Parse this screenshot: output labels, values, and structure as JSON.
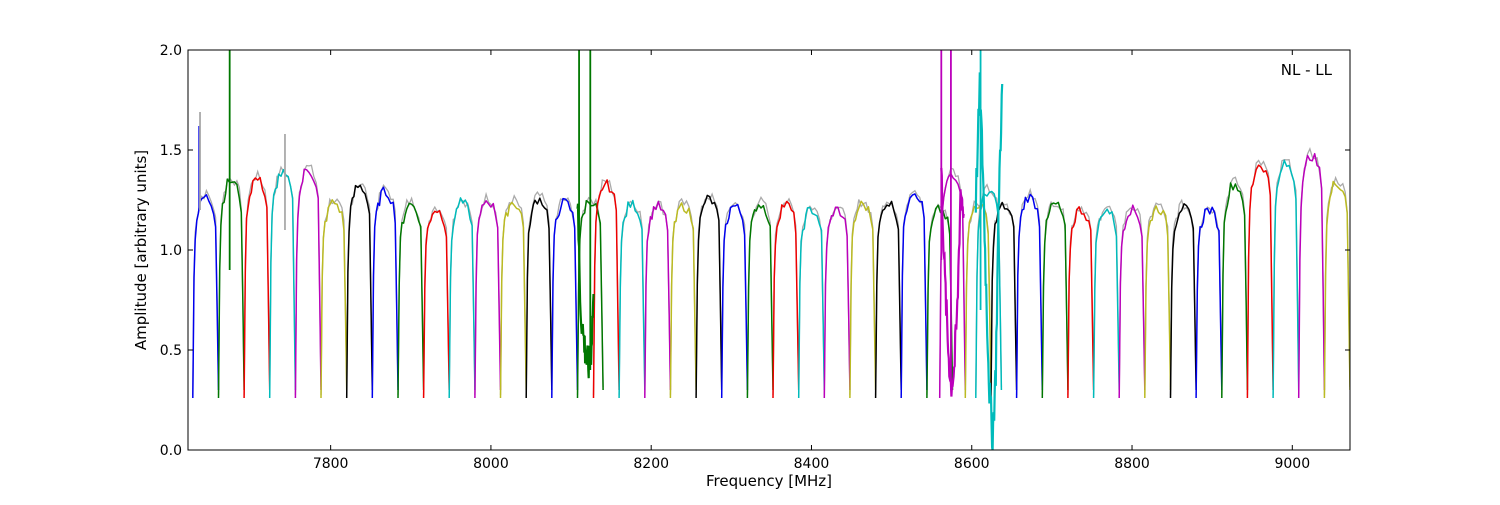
{
  "chart_data": {
    "type": "line",
    "annotation": "NL - LL",
    "xlabel": "Frequency [MHz]",
    "ylabel": "Amplitude [arbitrary units]",
    "xlim": [
      7622,
      9072
    ],
    "ylim": [
      0.0,
      2.0
    ],
    "x_ticks": [
      7800,
      8000,
      8200,
      8400,
      8600,
      8800,
      9000
    ],
    "x_tick_labels": [
      "7800",
      "8000",
      "8200",
      "8400",
      "8600",
      "8800",
      "9000"
    ],
    "y_ticks": [
      0.0,
      0.5,
      1.0,
      1.5,
      2.0
    ],
    "y_tick_labels": [
      "0.0",
      "0.5",
      "1.0",
      "1.5",
      "2.0"
    ],
    "grid": false,
    "legend": "none",
    "background_color": "#aaaaaa",
    "series_colors": [
      "#0000ee",
      "#007700",
      "#ee0000",
      "#00bbbb",
      "#bb00bb",
      "#bbbb22",
      "#000000"
    ],
    "channel_width_mhz": 32,
    "channel_shape": {
      "dx": [
        0,
        1.5,
        3,
        5,
        7,
        9,
        11,
        14,
        17,
        20,
        23,
        26,
        28.5,
        30.5,
        32
      ],
      "dy": [
        0.26,
        0.82,
        1.02,
        1.1,
        1.13,
        1.16,
        1.19,
        1.2,
        1.2,
        1.19,
        1.17,
        1.14,
        1.08,
        0.65,
        0.3
      ]
    },
    "channels": [
      {
        "start": 7628,
        "color": "#0000ee",
        "scale": 1.07
      },
      {
        "start": 7660,
        "color": "#007700",
        "scale": 1.16
      },
      {
        "start": 7692,
        "color": "#ee0000",
        "scale": 1.17
      },
      {
        "start": 7724,
        "color": "#00bbbb",
        "scale": 1.2
      },
      {
        "start": 7756,
        "color": "#bb00bb",
        "scale": 1.22
      },
      {
        "start": 7788,
        "color": "#bbbb22",
        "scale": 1.04
      },
      {
        "start": 7820,
        "color": "#000000",
        "scale": 1.13
      },
      {
        "start": 7852,
        "color": "#0000ee",
        "scale": 1.1
      },
      {
        "start": 7884,
        "color": "#007700",
        "scale": 1.03
      },
      {
        "start": 7916,
        "color": "#ee0000",
        "scale": 1.0
      },
      {
        "start": 7948,
        "color": "#00bbbb",
        "scale": 1.04
      },
      {
        "start": 7980,
        "color": "#bb00bb",
        "scale": 1.05
      },
      {
        "start": 8012,
        "color": "#bbbb22",
        "scale": 1.04
      },
      {
        "start": 8044,
        "color": "#000000",
        "scale": 1.06
      },
      {
        "start": 8076,
        "color": "#0000ee",
        "scale": 1.04
      },
      {
        "start": 8108,
        "color": "#007700",
        "scale": 1.05
      },
      {
        "start": 8128,
        "color": "#ee0000",
        "scale": 1.14
      },
      {
        "start": 8160,
        "color": "#00bbbb",
        "scale": 1.03
      },
      {
        "start": 8192,
        "color": "#bb00bb",
        "scale": 1.02
      },
      {
        "start": 8224,
        "color": "#bbbb22",
        "scale": 1.02
      },
      {
        "start": 8256,
        "color": "#000000",
        "scale": 1.06
      },
      {
        "start": 8288,
        "color": "#0000ee",
        "scale": 1.02
      },
      {
        "start": 8320,
        "color": "#007700",
        "scale": 1.03
      },
      {
        "start": 8352,
        "color": "#ee0000",
        "scale": 1.03
      },
      {
        "start": 8384,
        "color": "#00bbbb",
        "scale": 1.0
      },
      {
        "start": 8416,
        "color": "#bb00bb",
        "scale": 1.0
      },
      {
        "start": 8448,
        "color": "#bbbb22",
        "scale": 1.03
      },
      {
        "start": 8480,
        "color": "#000000",
        "scale": 1.04
      },
      {
        "start": 8512,
        "color": "#0000ee",
        "scale": 1.1
      },
      {
        "start": 8544,
        "color": "#007700",
        "scale": 1.0
      },
      {
        "start": 8560,
        "color": "#bb00bb",
        "scale": 1.2
      },
      {
        "start": 8592,
        "color": "#bbbb22",
        "scale": 1.03
      },
      {
        "start": 8605,
        "color": "#00bbbb",
        "scale": 1.1
      },
      {
        "start": 8624,
        "color": "#000000",
        "scale": 1.02
      },
      {
        "start": 8656,
        "color": "#0000ee",
        "scale": 1.07
      },
      {
        "start": 8688,
        "color": "#007700",
        "scale": 1.03
      },
      {
        "start": 8720,
        "color": "#ee0000",
        "scale": 1.0
      },
      {
        "start": 8752,
        "color": "#00bbbb",
        "scale": 1.0
      },
      {
        "start": 8784,
        "color": "#bb00bb",
        "scale": 1.0
      },
      {
        "start": 8816,
        "color": "#bbbb22",
        "scale": 1.01
      },
      {
        "start": 8848,
        "color": "#000000",
        "scale": 1.01
      },
      {
        "start": 8880,
        "color": "#0000ee",
        "scale": 1.0
      },
      {
        "start": 8912,
        "color": "#007700",
        "scale": 1.14
      },
      {
        "start": 8944,
        "color": "#ee0000",
        "scale": 1.25
      },
      {
        "start": 8976,
        "color": "#00bbbb",
        "scale": 1.25
      },
      {
        "start": 9008,
        "color": "#bb00bb",
        "scale": 1.3
      },
      {
        "start": 9040,
        "color": "#bbbb22",
        "scale": 1.15
      }
    ],
    "spikes": [
      {
        "x": 7636,
        "y_from": 1.2,
        "y_to": 1.62,
        "color": "#0000ee"
      },
      {
        "x": 7637,
        "y_from": 1.2,
        "y_to": 1.69,
        "color": "#aaaaaa"
      },
      {
        "x": 7674,
        "y_from": 0.9,
        "y_to": 2.0,
        "color": "#007700"
      },
      {
        "x": 7743,
        "y_from": 1.1,
        "y_to": 1.58,
        "color": "#aaaaaa"
      },
      {
        "x": 8110,
        "y_from": 0.75,
        "y_to": 2.0,
        "color": "#007700"
      },
      {
        "x": 8124,
        "y_from": 0.4,
        "y_to": 2.0,
        "color": "#007700"
      },
      {
        "x": 8562,
        "y_from": 0.95,
        "y_to": 2.0,
        "color": "#bb00bb"
      },
      {
        "x": 8574,
        "y_from": 0.3,
        "y_to": 2.0,
        "color": "#bb00bb"
      },
      {
        "x": 8611,
        "y_from": 0.7,
        "y_to": 2.0,
        "color": "#00bbbb"
      }
    ],
    "noisy_segments": [
      {
        "x": [
          8108,
          8112,
          8116,
          8119,
          8122,
          8125,
          8128
        ],
        "y": [
          1.25,
          0.7,
          0.55,
          0.45,
          0.42,
          0.5,
          0.78
        ],
        "color": "#007700"
      },
      {
        "x": [
          8562,
          8566,
          8570,
          8574,
          8578,
          8582,
          8586,
          8590
        ],
        "y": [
          1.4,
          0.9,
          0.55,
          0.32,
          0.4,
          0.7,
          1.3,
          1.18
        ],
        "color": "#bb00bb"
      },
      {
        "x": [
          8605,
          8610,
          8614,
          8618,
          8622,
          8626,
          8630,
          8634,
          8638
        ],
        "y": [
          1.25,
          1.8,
          1.4,
          0.8,
          0.3,
          0.06,
          0.4,
          1.3,
          1.83
        ],
        "color": "#00bbbb"
      }
    ]
  }
}
